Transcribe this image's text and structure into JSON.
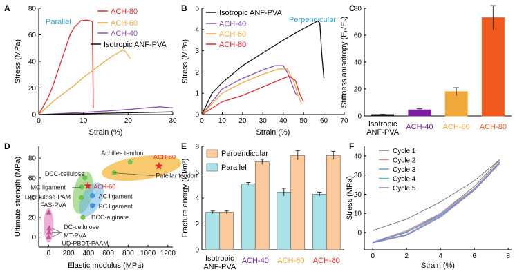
{
  "chart_data": [
    {
      "id": "A",
      "type": "line",
      "letter": "A",
      "xlabel": "Strain (%)",
      "ylabel": "Stress (MPa)",
      "xlim": [
        0,
        30
      ],
      "ylim": [
        0,
        80
      ],
      "xticks": [
        0,
        10,
        20,
        30
      ],
      "yticks": [
        0,
        20,
        40,
        60,
        80
      ],
      "annotation": {
        "text": "Parallel",
        "color": "#3aa7dd"
      },
      "legend_position": "top-right",
      "series": [
        {
          "name": "ACH-80",
          "color": "#e8262b",
          "x": [
            0,
            1,
            2,
            3,
            4,
            5,
            6,
            7,
            8,
            9,
            9.3,
            10.5,
            11,
            12,
            12.2
          ],
          "y": [
            0,
            6,
            12,
            20,
            30,
            40,
            50,
            60,
            66,
            69,
            70.5,
            71,
            71,
            70,
            5
          ]
        },
        {
          "name": "ACH-60",
          "color": "#f2a93b",
          "x": [
            0,
            2,
            4,
            6,
            8,
            10,
            12,
            14,
            16,
            18,
            18.8,
            19.5,
            20.5
          ],
          "y": [
            0,
            6,
            12,
            17,
            22,
            28,
            33,
            38,
            43,
            47,
            48.5,
            47,
            42
          ]
        },
        {
          "name": "ACH-40",
          "color": "#8a4fb0",
          "x": [
            0,
            5,
            10,
            15,
            20,
            24,
            27,
            30
          ],
          "y": [
            0,
            0.8,
            1.6,
            2.6,
            3.8,
            5,
            5.8,
            5
          ]
        },
        {
          "name": "Isotropic ANF-PVA",
          "color": "#111111",
          "x": [
            0,
            10,
            20,
            30
          ],
          "y": [
            0,
            0.6,
            1.3,
            2
          ]
        }
      ]
    },
    {
      "id": "B",
      "type": "line",
      "letter": "B",
      "xlabel": "Strain (%)",
      "ylabel": "Stress (MPa)",
      "xlim": [
        0,
        70
      ],
      "ylim": [
        0,
        5
      ],
      "xticks": [
        0,
        10,
        20,
        30,
        40,
        50,
        60,
        70
      ],
      "yticks": [
        0,
        1,
        2,
        3,
        4,
        5
      ],
      "annotation": {
        "text": "Perpendicular",
        "color": "#3aa7dd"
      },
      "legend_position": "top-left",
      "series": [
        {
          "name": "Isotropic ANF-PVA",
          "color": "#111111",
          "x": [
            0,
            5,
            10,
            20,
            30,
            40,
            50,
            55,
            57,
            58,
            59,
            60
          ],
          "y": [
            0,
            1,
            1.5,
            2.3,
            2.9,
            3.5,
            4.05,
            4.3,
            4.4,
            4.3,
            2.8,
            1.7
          ]
        },
        {
          "name": "ACH-40",
          "color": "#8a4fb0",
          "x": [
            0,
            10,
            20,
            30,
            36,
            40,
            42,
            44,
            46,
            47
          ],
          "y": [
            0,
            1.2,
            1.7,
            2.1,
            2.3,
            2.3,
            2.0,
            1.5,
            1.0,
            0.9
          ]
        },
        {
          "name": "ACH-60",
          "color": "#f2a93b",
          "x": [
            0,
            10,
            20,
            30,
            38,
            42,
            45,
            47,
            49
          ],
          "y": [
            0,
            1,
            1.5,
            1.9,
            2.15,
            2.15,
            1.6,
            1.0,
            0.5
          ]
        },
        {
          "name": "ACH-80",
          "color": "#e8262b",
          "x": [
            0,
            10,
            20,
            30,
            40,
            43,
            46,
            48,
            50
          ],
          "y": [
            0,
            0.6,
            0.9,
            1.3,
            1.7,
            1.8,
            1.6,
            1.0,
            0.6
          ]
        }
      ]
    },
    {
      "id": "C",
      "type": "bar",
      "letter": "C",
      "ylabel": "Stiffness anisotropy (Eₚ/Eₛ)",
      "ylim": [
        0,
        80
      ],
      "yticks": [
        0,
        20,
        40,
        60,
        80
      ],
      "categories": [
        "Isotropic ANF-PVA",
        "ACH-40",
        "ACH-60",
        "ACH-80"
      ],
      "category_colors": [
        "#111111",
        "#7b1ea2",
        "#f2a93b",
        "#f05a1e"
      ],
      "values": [
        1,
        4.5,
        18,
        73
      ],
      "errors": [
        0.3,
        0.8,
        3,
        9
      ]
    },
    {
      "id": "D",
      "type": "scatter",
      "letter": "D",
      "xlabel": "Elastic modulus (MPa)",
      "ylabel": "Ultimate strength (MPa)",
      "xlim": [
        -100,
        1250
      ],
      "ylim": [
        -10,
        92
      ],
      "xticks": [
        0,
        200,
        400,
        600,
        800,
        1000,
        1200
      ],
      "yticks": [
        0,
        20,
        40,
        60,
        80
      ],
      "points": [
        {
          "label": "ACH-80",
          "x": 1110,
          "y": 72,
          "marker": "star",
          "color": "#e8262b",
          "label_color": "#e8262b"
        },
        {
          "label": "ACH-60",
          "x": 395,
          "y": 52,
          "marker": "star",
          "color": "#e8262b",
          "label_color": "#e8262b"
        },
        {
          "label": "Achilles tendon",
          "x": 820,
          "y": 76,
          "marker": "pentagon",
          "color": "#6fc24a",
          "label_color": "#222222"
        },
        {
          "label": "Patellar tendon",
          "x": 660,
          "y": 65,
          "marker": "pentagon",
          "color": "#6fc24a",
          "label_color": "#222222"
        },
        {
          "label": "DCC-cellulose",
          "x": 365,
          "y": 60,
          "marker": "hexagon",
          "color": "#6fc24a",
          "label_color": "#222222"
        },
        {
          "label": "MC ligament",
          "x": 335,
          "y": 51,
          "marker": "hexagon",
          "color": "#6fc24a",
          "label_color": "#222222"
        },
        {
          "label": "D-cellulose-PAM",
          "x": 330,
          "y": 40,
          "marker": "hexagon",
          "color": "#6fc24a",
          "label_color": "#222222"
        },
        {
          "label": "AC ligament",
          "x": 440,
          "y": 42,
          "marker": "hexagon",
          "color": "#4a90d9",
          "label_color": "#222222"
        },
        {
          "label": "PC ligament",
          "x": 440,
          "y": 32,
          "marker": "hexagon",
          "color": "#4a90d9",
          "label_color": "#222222"
        },
        {
          "label": "DCC-alginate",
          "x": 345,
          "y": 20,
          "marker": "hexagon",
          "color": "#6fc24a",
          "label_color": "#222222"
        },
        {
          "label": "FAS-PVA",
          "x": 0,
          "y": 25,
          "marker": "triangle",
          "color": "#c2569a",
          "label_color": "#222222"
        },
        {
          "label": "DC-cellulose",
          "x": 5,
          "y": 9,
          "marker": "triangle",
          "color": "#c2569a",
          "label_color": "#222222"
        },
        {
          "label": "MT-PVA",
          "x": 5,
          "y": 5,
          "marker": "triangle",
          "color": "#c2569a",
          "label_color": "#222222"
        },
        {
          "label": "UD-PBDT-PAAM",
          "x": 0,
          "y": 0,
          "marker": "triangle",
          "color": "#c2569a",
          "label_color": "#222222"
        }
      ]
    },
    {
      "id": "E",
      "type": "bar",
      "letter": "E",
      "ylabel": "Fracture energy (kJ/m²)",
      "ylim": [
        0,
        8
      ],
      "yticks": [
        0,
        2,
        4,
        6,
        8
      ],
      "categories": [
        "Isotropic ANF-PVA",
        "ACH-40",
        "ACH-60",
        "ACH-80"
      ],
      "category_colors": [
        "#111111",
        "#7b1ea2",
        "#f2a93b",
        "#e8262b"
      ],
      "legend_position": "top-left",
      "series": [
        {
          "name": "Perpendicular",
          "color": "#fbc99b",
          "values": [
            2.9,
            6.8,
            7.3,
            7.3
          ],
          "errors": [
            0.1,
            0.2,
            0.35,
            0.3
          ]
        },
        {
          "name": "Parallel",
          "color": "#a8e2e6",
          "values": [
            2.9,
            5.1,
            4.45,
            4.3
          ],
          "errors": [
            0.1,
            0.1,
            0.3,
            0.15
          ]
        }
      ]
    },
    {
      "id": "F",
      "type": "line",
      "letter": "F",
      "xlabel": "Strain (%)",
      "ylabel": "Stress (MPa)",
      "xlim": [
        -0.5,
        8.2
      ],
      "ylim": [
        -9,
        45
      ],
      "xticks": [
        0,
        2,
        4,
        6,
        8
      ],
      "yticks": [
        0,
        10,
        20,
        30,
        40
      ],
      "legend_position": "top-left",
      "series": [
        {
          "name": "Cycle 1",
          "color": "#7a7a7a",
          "loading": {
            "x": [
              0,
              2,
              4,
              6,
              7.5
            ],
            "y": [
              1,
              7,
              16,
              27,
              38
            ]
          },
          "unloading": {
            "x": [
              7.5,
              6,
              4,
              2,
              0
            ],
            "y": [
              38,
              24,
              10,
              0,
              -5
            ]
          }
        },
        {
          "name": "Cycle 2",
          "color": "#e08a8a",
          "loading": {
            "x": [
              0,
              2,
              4,
              6,
              7.5
            ],
            "y": [
              -5,
              1,
              10,
              23,
              37
            ]
          },
          "unloading": {
            "x": [
              7.5,
              6,
              4,
              2,
              0
            ],
            "y": [
              37,
              23,
              9,
              -1,
              -5
            ]
          }
        },
        {
          "name": "Cycle 3",
          "color": "#5fa0df",
          "loading": {
            "x": [
              0,
              2,
              4,
              6,
              7.5
            ],
            "y": [
              -5,
              0.5,
              9.5,
              22.5,
              36.5
            ]
          },
          "unloading": {
            "x": [
              7.5,
              6,
              4,
              2,
              0
            ],
            "y": [
              36.5,
              22.5,
              8.5,
              -1.2,
              -5.2
            ]
          }
        },
        {
          "name": "Cycle 4",
          "color": "#4fc7b5",
          "loading": {
            "x": [
              0,
              2,
              4,
              6,
              7.5
            ],
            "y": [
              -5.2,
              0.3,
              9.2,
              22.2,
              36.2
            ]
          },
          "unloading": {
            "x": [
              7.5,
              6,
              4,
              2,
              0
            ],
            "y": [
              36.2,
              22.2,
              8.3,
              -1.4,
              -5.3
            ]
          }
        },
        {
          "name": "Cycle 5",
          "color": "#9a7ad0",
          "loading": {
            "x": [
              0,
              2,
              4,
              6,
              7.5
            ],
            "y": [
              -5.3,
              0.1,
              9,
              22,
              36
            ]
          },
          "unloading": {
            "x": [
              7.5,
              6,
              4,
              2,
              0
            ],
            "y": [
              36,
              22,
              8,
              -1.5,
              -5.4
            ]
          }
        }
      ]
    }
  ]
}
